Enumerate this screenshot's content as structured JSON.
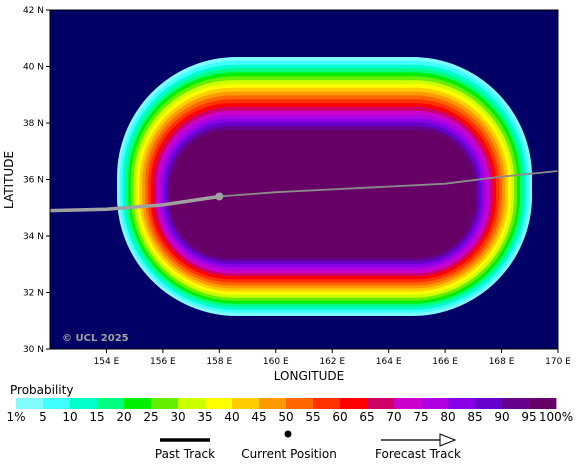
{
  "map": {
    "background_color": "#000066",
    "lon_range": [
      152.0,
      170.0
    ],
    "lat_range": [
      30.0,
      42.0
    ],
    "x_axis_label": "LONGITUDE",
    "y_axis_label": "LATITUDE",
    "lon_ticks": [
      "154 E",
      "156 E",
      "158 E",
      "160 E",
      "162 E",
      "164 E",
      "166 E",
      "168 E",
      "170 E"
    ],
    "lat_ticks": [
      "30 N",
      "32 N",
      "34 N",
      "36 N",
      "38 N",
      "40 N",
      "42 N"
    ],
    "copyright": "© UCL 2025"
  },
  "chart_data": {
    "type": "heatmap",
    "description_of_field": "strike probability contours around storm track",
    "probability_bands": [
      1,
      5,
      10,
      15,
      20,
      25,
      30,
      35,
      40,
      45,
      50,
      55,
      60,
      65,
      70,
      75,
      80,
      85,
      90,
      95
    ],
    "band_colors": [
      "#7ffcfc",
      "#40ffff",
      "#00ffcc",
      "#00ff80",
      "#00ee00",
      "#66ee00",
      "#ccff00",
      "#ffff00",
      "#ffcc00",
      "#ff9900",
      "#ff6600",
      "#ff3300",
      "#ff0000",
      "#cc0066",
      "#cc00cc",
      "#b000e0",
      "#8a00e6",
      "#6600cc",
      "#66008c",
      "#660066"
    ],
    "past_track": [
      [
        152.0,
        34.9
      ],
      [
        154.0,
        34.95
      ],
      [
        156.0,
        35.1
      ],
      [
        158.0,
        35.4
      ]
    ],
    "current_position": [
      158.0,
      35.4
    ],
    "forecast_track": [
      [
        158.0,
        35.4
      ],
      [
        160.0,
        35.55
      ],
      [
        162.0,
        35.65
      ],
      [
        164.0,
        35.75
      ],
      [
        166.0,
        35.85
      ],
      [
        168.0,
        36.1
      ],
      [
        170.0,
        36.3
      ]
    ]
  },
  "legend": {
    "title": "Probability",
    "labels": [
      "1%",
      "5",
      "10",
      "15",
      "20",
      "25",
      "30",
      "35",
      "40",
      "45",
      "50",
      "55",
      "60",
      "65",
      "70",
      "75",
      "80",
      "85",
      "90",
      "95",
      "100%"
    ],
    "past_track_label": "Past Track",
    "current_position_label": "Current Position",
    "forecast_track_label": "Forecast Track"
  }
}
